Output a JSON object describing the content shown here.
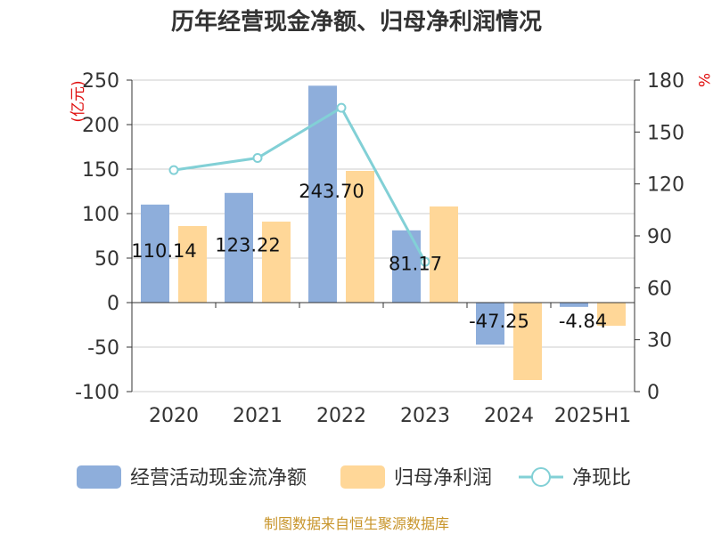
{
  "chart_data": {
    "type": "bar",
    "title": "历年经营现金净额、归母净利润情况",
    "categories": [
      "2020",
      "2021",
      "2022",
      "2023",
      "2024",
      "2025H1"
    ],
    "y_left": {
      "unit": "(亿元)",
      "ylim": [
        -100,
        250
      ],
      "ticks": [
        "250",
        "200",
        "150",
        "100",
        "50",
        "0",
        "-50",
        "-100"
      ]
    },
    "y_right": {
      "unit": "%",
      "ylim": [
        0,
        180
      ],
      "ticks": [
        "180",
        "150",
        "120",
        "90",
        "60",
        "30",
        "0"
      ]
    },
    "grid": true,
    "legend_position": "bottom",
    "series": [
      {
        "name": "经营活动现金流净额",
        "type": "bar",
        "axis": "left",
        "color": "#8eaedb",
        "values": [
          110.14,
          123.22,
          243.7,
          81.17,
          -47.25,
          -4.84
        ],
        "labels": [
          "110.14",
          "123.22",
          "243.70",
          "81.17",
          "-47.25",
          "-4.84"
        ]
      },
      {
        "name": "归母净利润",
        "type": "bar",
        "axis": "left",
        "color": "#ffd798",
        "values": [
          86,
          91,
          148,
          108,
          -87,
          -26
        ]
      },
      {
        "name": "净现比",
        "type": "line",
        "axis": "right",
        "color": "#82d0d6",
        "values": [
          128,
          135,
          164,
          75,
          null,
          null
        ]
      }
    ],
    "source": "制图数据来自恒生聚源数据库"
  }
}
